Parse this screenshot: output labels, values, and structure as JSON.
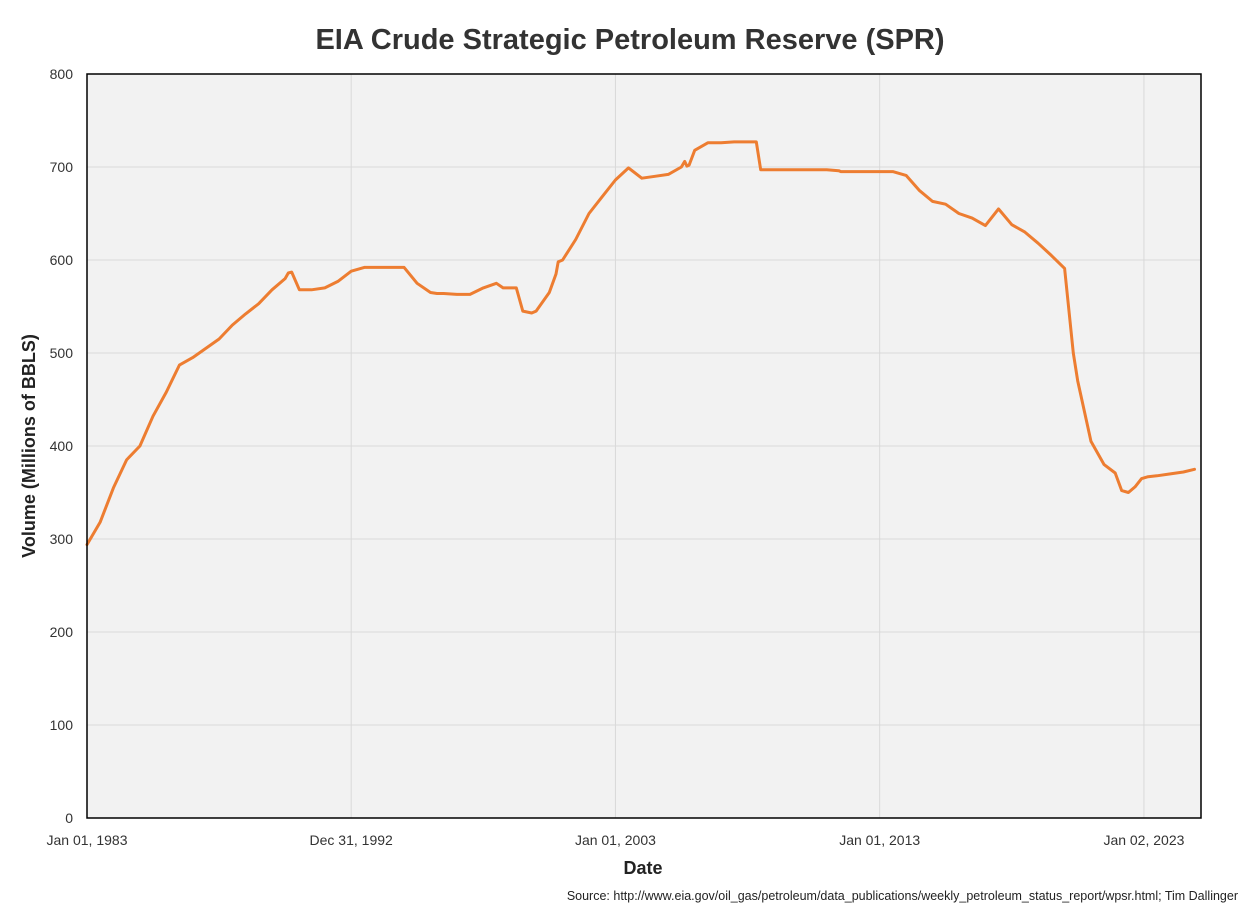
{
  "chart_data": {
    "type": "line",
    "title": "EIA Crude Strategic Petroleum Reserve (SPR)",
    "xlabel": "Date",
    "ylabel": "Volume (Millions of BBLS)",
    "source": "Source: http://www.eia.gov/oil_gas/petroleum/data_publications/weekly_petroleum_status_report/wpsr.html; Tim Dallinger",
    "ylim": [
      0,
      800
    ],
    "yticks": [
      0,
      100,
      200,
      300,
      400,
      500,
      600,
      700,
      800
    ],
    "xlim": [
      "1983-01-01",
      "2025-03-01"
    ],
    "xticks": [
      {
        "date": "1983-01-01",
        "label": "Jan 01, 1983"
      },
      {
        "date": "1992-12-31",
        "label": "Dec 31, 1992"
      },
      {
        "date": "2003-01-01",
        "label": "Jan 01, 2003"
      },
      {
        "date": "2013-01-01",
        "label": "Jan 01, 2013"
      },
      {
        "date": "2023-01-02",
        "label": "Jan 02, 2023"
      }
    ],
    "grid": true,
    "legend": "none",
    "colors": {
      "line": "#ED7D31",
      "plot_bg": "#F2F2F2",
      "grid": "#D9D9D9"
    },
    "series": [
      {
        "x": [
          "1983-01-01",
          "1983-07-01",
          "1984-01-01",
          "1984-07-01",
          "1985-01-01",
          "1985-07-01",
          "1986-01-01",
          "1986-07-01",
          "1987-01-01",
          "1987-07-01",
          "1988-01-01",
          "1988-07-01",
          "1989-01-01",
          "1989-07-01",
          "1990-01-01",
          "1990-07-01",
          "1990-08-15",
          "1990-10-01",
          "1991-01-15",
          "1991-04-01",
          "1991-07-01",
          "1992-01-01",
          "1992-07-01",
          "1993-01-01",
          "1993-07-01",
          "1994-01-01",
          "1994-07-01",
          "1995-01-01",
          "1995-07-01",
          "1996-01-01",
          "1996-04-01",
          "1996-07-01",
          "1997-01-01",
          "1997-07-01",
          "1998-01-01",
          "1998-07-01",
          "1998-10-01",
          "1999-01-01",
          "1999-04-01",
          "1999-07-01",
          "1999-11-01",
          "2000-01-01",
          "2000-07-01",
          "2000-10-01",
          "2000-11-01",
          "2001-01-01",
          "2001-07-01",
          "2002-01-01",
          "2002-07-01",
          "2003-01-01",
          "2003-07-01",
          "2004-01-01",
          "2004-07-01",
          "2005-01-01",
          "2005-07-01",
          "2005-08-15",
          "2005-09-15",
          "2005-10-15",
          "2006-01-01",
          "2006-07-01",
          "2007-01-01",
          "2007-07-01",
          "2008-01-01",
          "2008-05-01",
          "2008-07-01",
          "2009-01-01",
          "2009-07-01",
          "2010-01-01",
          "2010-07-01",
          "2011-01-01",
          "2011-06-15",
          "2011-07-15",
          "2012-01-01",
          "2012-07-01",
          "2013-01-01",
          "2013-07-01",
          "2014-01-01",
          "2014-07-01",
          "2015-01-01",
          "2015-07-01",
          "2016-01-01",
          "2016-07-01",
          "2017-01-01",
          "2017-07-01",
          "2018-01-01",
          "2018-07-01",
          "2019-01-01",
          "2019-07-01",
          "2020-01-01",
          "2020-05-01",
          "2020-07-01",
          "2021-01-01",
          "2021-07-01",
          "2021-12-01",
          "2022-03-01",
          "2022-06-01",
          "2022-09-01",
          "2022-12-01",
          "2023-03-01",
          "2023-07-01",
          "2024-01-01",
          "2024-07-01",
          "2024-12-01"
        ],
        "values": [
          294,
          318,
          355,
          385,
          400,
          432,
          458,
          487,
          495,
          505,
          515,
          530,
          542,
          553,
          568,
          580,
          586,
          587,
          568,
          568,
          568,
          570,
          577,
          588,
          592,
          592,
          592,
          592,
          575,
          565,
          564,
          564,
          563,
          563,
          570,
          575,
          570,
          570,
          570,
          545,
          543,
          545,
          565,
          585,
          598,
          600,
          622,
          650,
          668,
          686,
          699,
          688,
          690,
          692,
          700,
          706,
          701,
          702,
          718,
          726,
          726,
          727,
          727,
          727,
          697,
          697,
          697,
          697,
          697,
          697,
          696,
          695,
          695,
          695,
          695,
          695,
          691,
          675,
          663,
          660,
          650,
          645,
          637,
          655,
          638,
          630,
          618,
          605,
          591,
          500,
          470,
          405,
          380,
          371,
          352,
          350,
          356,
          365,
          367,
          368,
          370,
          372,
          375
        ]
      }
    ]
  }
}
